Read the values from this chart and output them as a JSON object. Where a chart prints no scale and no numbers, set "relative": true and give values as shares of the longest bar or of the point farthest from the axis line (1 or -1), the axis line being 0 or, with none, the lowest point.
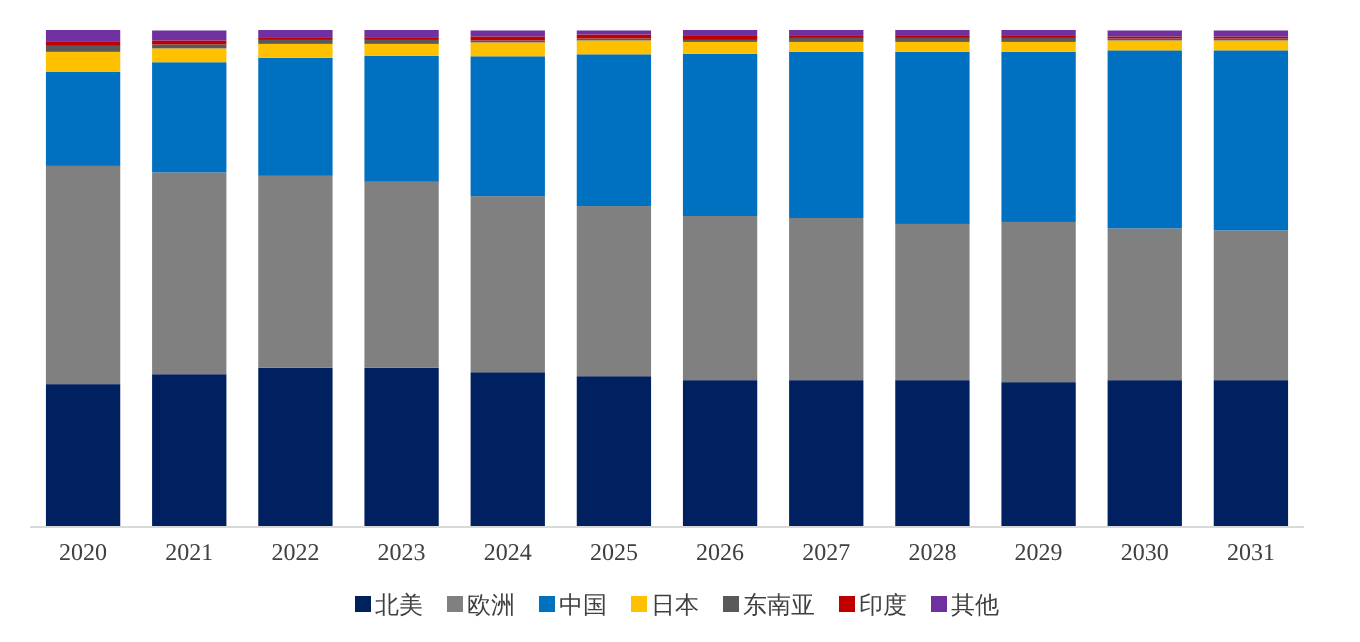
{
  "chart_data": {
    "type": "bar",
    "stacked": true,
    "relative": true,
    "legend": "bottom",
    "categories": [
      "2020",
      "2021",
      "2022",
      "2023",
      "2024",
      "2025",
      "2026",
      "2027",
      "2028",
      "2029",
      "2030",
      "2031"
    ],
    "series": [
      {
        "name": "北美",
        "color": "#002060",
        "values": [
          0.286,
          0.306,
          0.319,
          0.319,
          0.31,
          0.302,
          0.294,
          0.294,
          0.294,
          0.29,
          0.294,
          0.294
        ]
      },
      {
        "name": "欧洲",
        "color": "#808080",
        "values": [
          0.44,
          0.407,
          0.387,
          0.375,
          0.355,
          0.343,
          0.331,
          0.327,
          0.315,
          0.323,
          0.306,
          0.302
        ]
      },
      {
        "name": "中国",
        "color": "#0070c0",
        "values": [
          0.19,
          0.222,
          0.238,
          0.254,
          0.282,
          0.306,
          0.327,
          0.335,
          0.347,
          0.343,
          0.359,
          0.363
        ]
      },
      {
        "name": "日本",
        "color": "#ffc000",
        "values": [
          0.04,
          0.028,
          0.028,
          0.024,
          0.028,
          0.028,
          0.024,
          0.02,
          0.02,
          0.02,
          0.02,
          0.02
        ]
      },
      {
        "name": "东南亚",
        "color": "#595959",
        "values": [
          0.012,
          0.008,
          0.008,
          0.008,
          0.004,
          0.004,
          0.004,
          0.008,
          0.008,
          0.008,
          0.004,
          0.004
        ]
      },
      {
        "name": "印度",
        "color": "#c00000",
        "values": [
          0.008,
          0.008,
          0.004,
          0.004,
          0.008,
          0.008,
          0.008,
          0.004,
          0.004,
          0.004,
          0.004,
          0.004
        ]
      },
      {
        "name": "其他",
        "color": "#7030a0",
        "values": [
          0.024,
          0.02,
          0.016,
          0.016,
          0.012,
          0.008,
          0.012,
          0.012,
          0.012,
          0.012,
          0.012,
          0.012
        ]
      }
    ]
  }
}
